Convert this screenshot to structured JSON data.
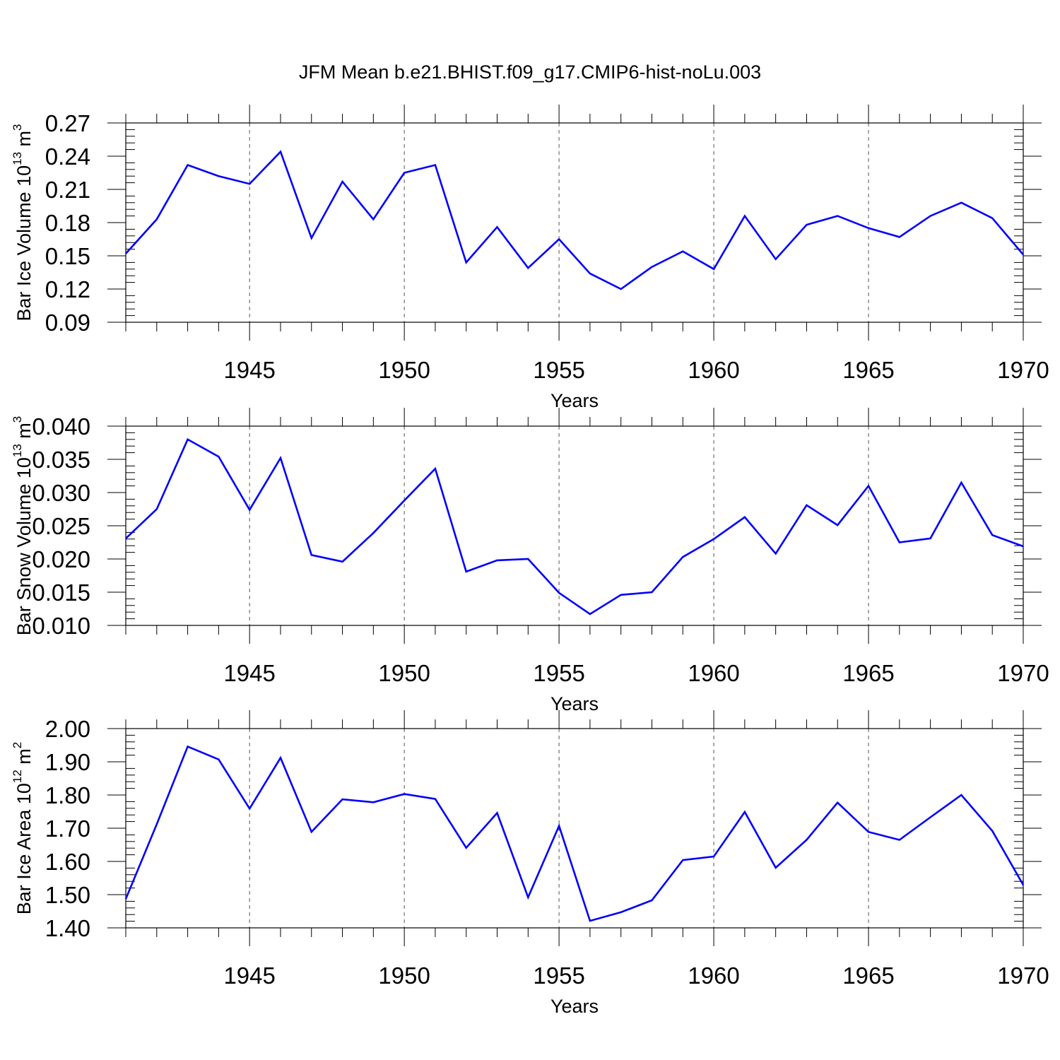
{
  "figure": {
    "title": "JFM Mean b.e21.BHIST.f09_g17.CMIP6-hist-noLu.003"
  },
  "chart_data": [
    {
      "type": "line",
      "ylabel": {
        "main": "Bar Ice Volume 10",
        "sup": "13",
        "unit": " m",
        "unit_sup": "3"
      },
      "xlabel": "Years",
      "xlim": [
        1941,
        1970
      ],
      "ylim": [
        0.09,
        0.27
      ],
      "yticks": [
        0.09,
        0.12,
        0.15,
        0.18,
        0.21,
        0.24,
        0.27
      ],
      "ytick_labels": [
        "0.09",
        "0.12",
        "0.15",
        "0.18",
        "0.21",
        "0.24",
        "0.27"
      ],
      "xticks": [
        1945,
        1950,
        1955,
        1960,
        1965,
        1970
      ],
      "xtick_labels": [
        "1945",
        "1950",
        "1955",
        "1960",
        "1965",
        "1970"
      ],
      "grid": "vertical dashed at major x ticks",
      "line_color": "#0000ff",
      "x": [
        1941,
        1942,
        1943,
        1944,
        1945,
        1946,
        1947,
        1948,
        1949,
        1950,
        1951,
        1952,
        1953,
        1954,
        1955,
        1956,
        1957,
        1958,
        1959,
        1960,
        1961,
        1962,
        1963,
        1964,
        1965,
        1966,
        1967,
        1968,
        1969,
        1970
      ],
      "values": [
        0.152,
        0.183,
        0.232,
        0.222,
        0.215,
        0.244,
        0.166,
        0.217,
        0.183,
        0.225,
        0.232,
        0.144,
        0.176,
        0.139,
        0.165,
        0.134,
        0.12,
        0.14,
        0.154,
        0.138,
        0.186,
        0.147,
        0.178,
        0.186,
        0.175,
        0.167,
        0.186,
        0.198,
        0.184,
        0.151
      ]
    },
    {
      "type": "line",
      "ylabel": {
        "main": "Bar Snow Volume 10",
        "sup": "13",
        "unit": " m",
        "unit_sup": "3"
      },
      "xlabel": "Years",
      "xlim": [
        1941,
        1970
      ],
      "ylim": [
        0.01,
        0.04
      ],
      "yticks": [
        0.01,
        0.015,
        0.02,
        0.025,
        0.03,
        0.035,
        0.04
      ],
      "ytick_labels": [
        "0.010",
        "0.015",
        "0.020",
        "0.025",
        "0.030",
        "0.035",
        "0.040"
      ],
      "xticks": [
        1945,
        1950,
        1955,
        1960,
        1965,
        1970
      ],
      "xtick_labels": [
        "1945",
        "1950",
        "1955",
        "1960",
        "1965",
        "1970"
      ],
      "grid": "vertical dashed at major x ticks",
      "line_color": "#0000ff",
      "x": [
        1941,
        1942,
        1943,
        1944,
        1945,
        1946,
        1947,
        1948,
        1949,
        1950,
        1951,
        1952,
        1953,
        1954,
        1955,
        1956,
        1957,
        1958,
        1959,
        1960,
        1961,
        1962,
        1963,
        1964,
        1965,
        1966,
        1967,
        1968,
        1969,
        1970
      ],
      "values": [
        0.0231,
        0.0275,
        0.038,
        0.0354,
        0.0274,
        0.0352,
        0.0206,
        0.0196,
        0.0239,
        0.0288,
        0.0336,
        0.0181,
        0.0198,
        0.02,
        0.0149,
        0.0117,
        0.0146,
        0.015,
        0.0203,
        0.023,
        0.0263,
        0.0208,
        0.0281,
        0.0251,
        0.031,
        0.0225,
        0.0231,
        0.0315,
        0.0236,
        0.0219
      ]
    },
    {
      "type": "line",
      "ylabel": {
        "main": "Bar Ice Area 10",
        "sup": "12",
        "unit": " m",
        "unit_sup": "2"
      },
      "xlabel": "Years",
      "xlim": [
        1941,
        1970
      ],
      "ylim": [
        1.4,
        2.0
      ],
      "yticks": [
        1.4,
        1.5,
        1.6,
        1.7,
        1.8,
        1.9,
        2.0
      ],
      "ytick_labels": [
        "1.40",
        "1.50",
        "1.60",
        "1.70",
        "1.80",
        "1.90",
        "2.00"
      ],
      "xticks": [
        1945,
        1950,
        1955,
        1960,
        1965,
        1970
      ],
      "xtick_labels": [
        "1945",
        "1950",
        "1955",
        "1960",
        "1965",
        "1970"
      ],
      "grid": "vertical dashed at major x ticks",
      "line_color": "#0000ff",
      "x": [
        1941,
        1942,
        1943,
        1944,
        1945,
        1946,
        1947,
        1948,
        1949,
        1950,
        1951,
        1952,
        1953,
        1954,
        1955,
        1956,
        1957,
        1958,
        1959,
        1960,
        1961,
        1962,
        1963,
        1964,
        1965,
        1966,
        1967,
        1968,
        1969,
        1970
      ],
      "values": [
        1.487,
        1.712,
        1.946,
        1.907,
        1.759,
        1.912,
        1.689,
        1.787,
        1.778,
        1.803,
        1.788,
        1.641,
        1.746,
        1.492,
        1.707,
        1.421,
        1.447,
        1.483,
        1.604,
        1.615,
        1.749,
        1.581,
        1.665,
        1.777,
        1.689,
        1.665,
        1.733,
        1.8,
        1.692,
        1.529
      ]
    }
  ]
}
